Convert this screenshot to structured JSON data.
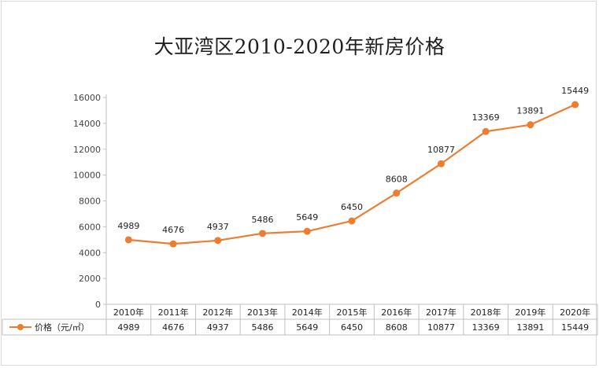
{
  "chart_data": {
    "type": "line",
    "title": "大亚湾区2010-2020年新房价格",
    "categories": [
      "2010年",
      "2011年",
      "2012年",
      "2013年",
      "2014年",
      "2015年",
      "2016年",
      "2017年",
      "2018年",
      "2019年",
      "2020年"
    ],
    "series": [
      {
        "name": "价格（元/㎡）",
        "values": [
          4989,
          4676,
          4937,
          5486,
          5649,
          6450,
          8608,
          10877,
          13369,
          13891,
          15449
        ]
      }
    ],
    "y_ticks": [
      "0",
      "2000",
      "4000",
      "6000",
      "8000",
      "10000",
      "12000",
      "14000",
      "16000"
    ],
    "ylim": [
      0,
      16000
    ],
    "grid": false,
    "legend": "data-table",
    "colors": {
      "line": "#ed7d31",
      "axis": "#bfbfbf",
      "text": "#222222"
    }
  }
}
